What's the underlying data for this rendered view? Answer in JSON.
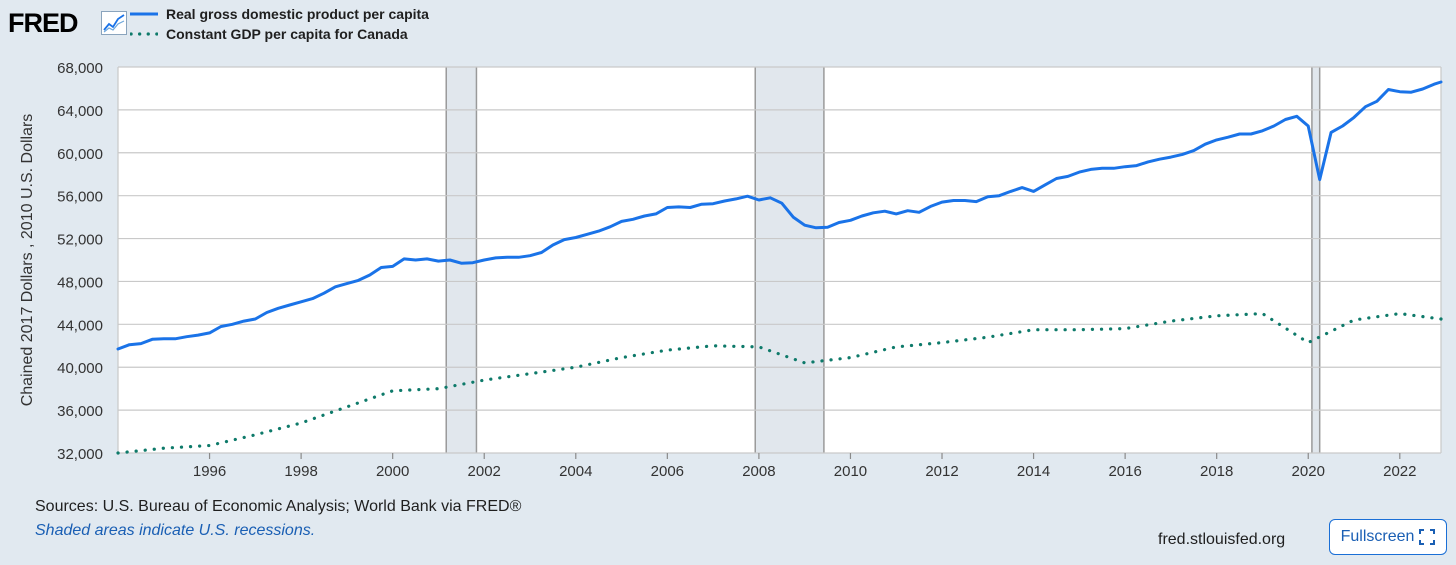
{
  "brand": {
    "logo_text": "FRED",
    "logo_icon": "chart-line-icon"
  },
  "legend": [
    {
      "label": "Real gross domestic product per capita",
      "style": "solid",
      "color": "#1a73e8"
    },
    {
      "label": "Constant GDP per capita for Canada",
      "style": "dotted",
      "color": "#0e7a6a"
    }
  ],
  "footer": {
    "sources": "Sources: U.S. Bureau of Economic Analysis; World Bank via FRED®",
    "note": "Shaded areas indicate U.S. recessions.",
    "site": "fred.stlouisfed.org",
    "fullscreen_label": "Fullscreen",
    "fullscreen_icon": "expand-icon"
  },
  "chart_data": {
    "type": "line",
    "title": "",
    "xlabel": "",
    "ylabel": "Chained 2017 Dollars , 2010 U.S. Dollars",
    "xlim": [
      1994.0,
      2022.9
    ],
    "ylim": [
      32000,
      68000
    ],
    "x_ticks": [
      1996,
      1998,
      2000,
      2002,
      2004,
      2006,
      2008,
      2010,
      2012,
      2014,
      2016,
      2018,
      2020,
      2022
    ],
    "y_ticks": [
      32000,
      36000,
      40000,
      44000,
      48000,
      52000,
      56000,
      60000,
      64000,
      68000
    ],
    "y_tick_labels": [
      "32,000",
      "36,000",
      "40,000",
      "44,000",
      "48,000",
      "52,000",
      "56,000",
      "60,000",
      "64,000",
      "68,000"
    ],
    "grid": "horizontal",
    "legend_position": "top-left",
    "recessions": [
      [
        2001.17,
        2001.83
      ],
      [
        2007.92,
        2009.42
      ],
      [
        2020.08,
        2020.25
      ]
    ],
    "colors": {
      "usa": "#1a73e8",
      "canada": "#0e7a6a",
      "recession": "#e1e7ed",
      "grid": "#c9c9c9"
    },
    "series": [
      {
        "name": "Real gross domestic product per capita",
        "style": "solid",
        "points": [
          [
            1994.0,
            41700
          ],
          [
            1994.25,
            42100
          ],
          [
            1994.5,
            42200
          ],
          [
            1994.75,
            42600
          ],
          [
            1995.0,
            42650
          ],
          [
            1995.25,
            42650
          ],
          [
            1995.5,
            42850
          ],
          [
            1995.75,
            43000
          ],
          [
            1996.0,
            43200
          ],
          [
            1996.25,
            43800
          ],
          [
            1996.5,
            44000
          ],
          [
            1996.75,
            44300
          ],
          [
            1997.0,
            44500
          ],
          [
            1997.25,
            45100
          ],
          [
            1997.5,
            45500
          ],
          [
            1997.75,
            45800
          ],
          [
            1998.0,
            46100
          ],
          [
            1998.25,
            46400
          ],
          [
            1998.5,
            46900
          ],
          [
            1998.75,
            47500
          ],
          [
            1999.0,
            47800
          ],
          [
            1999.25,
            48100
          ],
          [
            1999.5,
            48600
          ],
          [
            1999.75,
            49300
          ],
          [
            2000.0,
            49400
          ],
          [
            2000.25,
            50100
          ],
          [
            2000.5,
            50000
          ],
          [
            2000.75,
            50100
          ],
          [
            2001.0,
            49900
          ],
          [
            2001.25,
            50000
          ],
          [
            2001.5,
            49700
          ],
          [
            2001.75,
            49750
          ],
          [
            2002.0,
            50000
          ],
          [
            2002.25,
            50200
          ],
          [
            2002.5,
            50250
          ],
          [
            2002.75,
            50250
          ],
          [
            2003.0,
            50400
          ],
          [
            2003.25,
            50700
          ],
          [
            2003.5,
            51400
          ],
          [
            2003.75,
            51900
          ],
          [
            2004.0,
            52100
          ],
          [
            2004.25,
            52400
          ],
          [
            2004.5,
            52700
          ],
          [
            2004.75,
            53100
          ],
          [
            2005.0,
            53600
          ],
          [
            2005.25,
            53800
          ],
          [
            2005.5,
            54100
          ],
          [
            2005.75,
            54300
          ],
          [
            2006.0,
            54900
          ],
          [
            2006.25,
            54950
          ],
          [
            2006.5,
            54900
          ],
          [
            2006.75,
            55200
          ],
          [
            2007.0,
            55250
          ],
          [
            2007.25,
            55500
          ],
          [
            2007.5,
            55700
          ],
          [
            2007.75,
            55950
          ],
          [
            2008.0,
            55600
          ],
          [
            2008.25,
            55800
          ],
          [
            2008.5,
            55300
          ],
          [
            2008.75,
            54000
          ],
          [
            2009.0,
            53250
          ],
          [
            2009.25,
            53000
          ],
          [
            2009.5,
            53050
          ],
          [
            2009.75,
            53500
          ],
          [
            2010.0,
            53700
          ],
          [
            2010.25,
            54100
          ],
          [
            2010.5,
            54400
          ],
          [
            2010.75,
            54550
          ],
          [
            2011.0,
            54300
          ],
          [
            2011.25,
            54600
          ],
          [
            2011.5,
            54450
          ],
          [
            2011.75,
            55000
          ],
          [
            2012.0,
            55400
          ],
          [
            2012.25,
            55550
          ],
          [
            2012.5,
            55550
          ],
          [
            2012.75,
            55450
          ],
          [
            2013.0,
            55900
          ],
          [
            2013.25,
            56000
          ],
          [
            2013.5,
            56400
          ],
          [
            2013.75,
            56750
          ],
          [
            2014.0,
            56400
          ],
          [
            2014.25,
            57000
          ],
          [
            2014.5,
            57600
          ],
          [
            2014.75,
            57800
          ],
          [
            2015.0,
            58200
          ],
          [
            2015.25,
            58450
          ],
          [
            2015.5,
            58550
          ],
          [
            2015.75,
            58550
          ],
          [
            2016.0,
            58700
          ],
          [
            2016.25,
            58800
          ],
          [
            2016.5,
            59150
          ],
          [
            2016.75,
            59400
          ],
          [
            2017.0,
            59600
          ],
          [
            2017.25,
            59850
          ],
          [
            2017.5,
            60200
          ],
          [
            2017.75,
            60800
          ],
          [
            2018.0,
            61200
          ],
          [
            2018.25,
            61450
          ],
          [
            2018.5,
            61750
          ],
          [
            2018.75,
            61750
          ],
          [
            2019.0,
            62050
          ],
          [
            2019.25,
            62500
          ],
          [
            2019.5,
            63100
          ],
          [
            2019.75,
            63400
          ],
          [
            2020.0,
            62500
          ],
          [
            2020.25,
            57500
          ],
          [
            2020.5,
            61900
          ],
          [
            2020.75,
            62500
          ],
          [
            2021.0,
            63300
          ],
          [
            2021.25,
            64300
          ],
          [
            2021.5,
            64800
          ],
          [
            2021.75,
            65900
          ],
          [
            2022.0,
            65700
          ],
          [
            2022.25,
            65650
          ],
          [
            2022.5,
            65950
          ],
          [
            2022.75,
            66400
          ],
          [
            2022.9,
            66600
          ]
        ]
      },
      {
        "name": "Constant GDP per capita for Canada",
        "style": "dotted",
        "points": [
          [
            1994.0,
            32000
          ],
          [
            1995.0,
            32450
          ],
          [
            1996.0,
            32700
          ],
          [
            1997.0,
            33700
          ],
          [
            1998.0,
            34800
          ],
          [
            1999.0,
            36300
          ],
          [
            2000.0,
            37800
          ],
          [
            2001.0,
            38000
          ],
          [
            2002.0,
            38800
          ],
          [
            2003.0,
            39400
          ],
          [
            2004.0,
            40000
          ],
          [
            2005.0,
            40900
          ],
          [
            2006.0,
            41600
          ],
          [
            2007.0,
            42000
          ],
          [
            2008.0,
            41900
          ],
          [
            2009.0,
            40400
          ],
          [
            2010.0,
            40900
          ],
          [
            2011.0,
            41900
          ],
          [
            2012.0,
            42300
          ],
          [
            2013.0,
            42800
          ],
          [
            2014.0,
            43500
          ],
          [
            2015.0,
            43500
          ],
          [
            2016.0,
            43600
          ],
          [
            2017.0,
            44300
          ],
          [
            2018.0,
            44800
          ],
          [
            2019.0,
            45000
          ],
          [
            2020.0,
            42300
          ],
          [
            2021.0,
            44400
          ],
          [
            2022.0,
            45000
          ],
          [
            2022.9,
            44500
          ]
        ]
      }
    ]
  }
}
